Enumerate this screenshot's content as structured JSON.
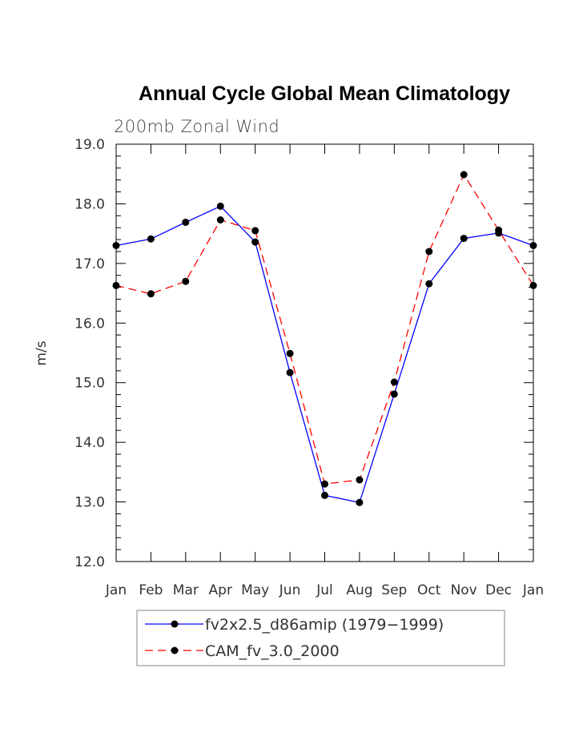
{
  "chart_data": {
    "type": "line",
    "title": "Annual Cycle Global Mean Climatology",
    "subtitle": "200mb Zonal Wind",
    "xlabel": "",
    "ylabel": "m/s",
    "categories": [
      "Jan",
      "Feb",
      "Mar",
      "Apr",
      "May",
      "Jun",
      "Jul",
      "Aug",
      "Sep",
      "Oct",
      "Nov",
      "Dec",
      "Jan"
    ],
    "ylim": [
      12.0,
      19.0
    ],
    "yticks": [
      "12.0",
      "13.0",
      "14.0",
      "15.0",
      "16.0",
      "17.0",
      "18.0",
      "19.0"
    ],
    "grid": false,
    "legend_position": "bottom",
    "series": [
      {
        "name": "fv2x2.5_d86amip (1979−1999)",
        "color": "#0000ff",
        "dash": "solid",
        "marker": "filled-circle",
        "values": [
          17.3,
          17.41,
          17.69,
          17.96,
          17.36,
          15.17,
          13.11,
          12.99,
          14.81,
          16.66,
          17.42,
          17.51,
          17.3
        ]
      },
      {
        "name": "CAM_fv_3.0_2000",
        "color": "#ff0000",
        "dash": "dashed",
        "marker": "filled-circle",
        "values": [
          16.63,
          16.49,
          16.7,
          17.73,
          17.55,
          15.49,
          13.3,
          13.37,
          15.01,
          17.2,
          18.49,
          17.56,
          16.63
        ]
      }
    ]
  }
}
